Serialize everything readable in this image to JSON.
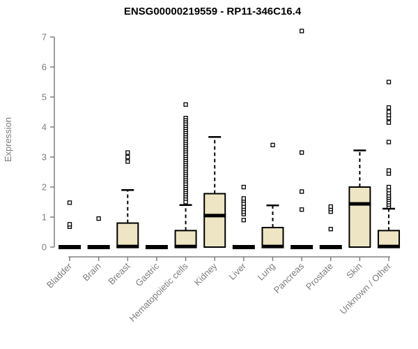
{
  "title": "ENSG00000219559 - RP11-346C16.4",
  "colors": {
    "box_fill": "#EDE5C3",
    "box_stroke": "#000000",
    "median": "#000000",
    "whisker": "#000000",
    "outlier_stroke": "#000000",
    "outlier_fill": "#ffffff",
    "axis": "#808080",
    "tick_label": "#7e7e7e",
    "title": "#000000",
    "background": "#FFFFFF"
  },
  "chart_data": {
    "type": "boxplot",
    "title": "ENSG00000219559 - RP11-346C16.4",
    "xlabel": "",
    "ylabel": "Expression",
    "ylim": [
      0,
      7
    ],
    "yticks": [
      0,
      1,
      2,
      3,
      4,
      5,
      6,
      7
    ],
    "grid": false,
    "legend": "none",
    "categories": [
      "Bladder",
      "Brain",
      "Breast",
      "Gastric",
      "Hematopoietic cells",
      "Kidney",
      "Liver",
      "Lung",
      "Pancreas",
      "Prostate",
      "Skin",
      "Unknown / Other"
    ],
    "boxes": [
      {
        "name": "Bladder",
        "q1": 0,
        "median": 0,
        "q3": 0,
        "whisker_low": 0,
        "whisker_high": 0,
        "outliers": [
          0.68,
          0.76,
          1.48
        ]
      },
      {
        "name": "Brain",
        "q1": 0,
        "median": 0,
        "q3": 0,
        "whisker_low": 0,
        "whisker_high": 0,
        "outliers": [
          0.95
        ]
      },
      {
        "name": "Breast",
        "q1": 0,
        "median": 0.02,
        "q3": 0.8,
        "whisker_low": 0,
        "whisker_high": 1.9,
        "outliers": [
          2.85,
          3.0,
          3.15
        ]
      },
      {
        "name": "Gastric",
        "q1": 0,
        "median": 0,
        "q3": 0,
        "whisker_low": 0,
        "whisker_high": 0,
        "outliers": []
      },
      {
        "name": "Hematopoietic cells",
        "q1": 0,
        "median": 0.02,
        "q3": 0.55,
        "whisker_low": 0,
        "whisker_high": 1.4,
        "outliers": [
          4.75,
          4.3,
          4.22,
          4.15,
          4.08,
          4.0,
          3.93,
          3.86,
          3.79,
          3.72,
          3.65,
          3.58,
          3.5,
          3.43,
          3.36,
          3.29,
          3.22,
          3.15,
          3.08,
          3.0,
          2.93,
          2.86,
          2.79,
          2.72,
          2.65,
          2.58,
          2.5,
          2.43,
          2.36,
          2.29,
          2.22,
          2.15,
          2.08,
          2.0,
          1.93,
          1.86,
          1.79,
          1.72,
          1.65,
          1.58,
          1.5
        ]
      },
      {
        "name": "Kidney",
        "q1": 0,
        "median": 1.05,
        "q3": 1.78,
        "whisker_low": 0,
        "whisker_high": 3.67,
        "outliers": []
      },
      {
        "name": "Liver",
        "q1": 0,
        "median": 0,
        "q3": 0,
        "whisker_low": 0,
        "whisker_high": 0,
        "outliers": [
          0.9,
          1.1,
          1.18,
          1.27,
          1.35,
          1.45,
          1.55,
          1.62,
          2.0
        ]
      },
      {
        "name": "Lung",
        "q1": 0,
        "median": 0.02,
        "q3": 0.65,
        "whisker_low": 0,
        "whisker_high": 1.39,
        "outliers": [
          3.4
        ]
      },
      {
        "name": "Pancreas",
        "q1": 0,
        "median": 0,
        "q3": 0,
        "whisker_low": 0,
        "whisker_high": 0,
        "outliers": [
          1.25,
          1.85,
          3.15,
          7.2
        ]
      },
      {
        "name": "Prostate",
        "q1": 0,
        "median": 0,
        "q3": 0,
        "whisker_low": 0,
        "whisker_high": 0,
        "outliers": [
          0.6,
          1.18,
          1.27,
          1.35
        ]
      },
      {
        "name": "Skin",
        "q1": 0,
        "median": 1.44,
        "q3": 2.0,
        "whisker_low": 0,
        "whisker_high": 3.22,
        "outliers": []
      },
      {
        "name": "Unknown / Other",
        "q1": 0,
        "median": 0.02,
        "q3": 0.55,
        "whisker_low": 0,
        "whisker_high": 1.28,
        "outliers": [
          1.35,
          1.42,
          1.5,
          1.58,
          1.65,
          1.72,
          1.8,
          1.9,
          2.0,
          2.45,
          2.55,
          3.5,
          4.15,
          4.3,
          4.4,
          4.5,
          4.65,
          5.5
        ]
      }
    ]
  }
}
